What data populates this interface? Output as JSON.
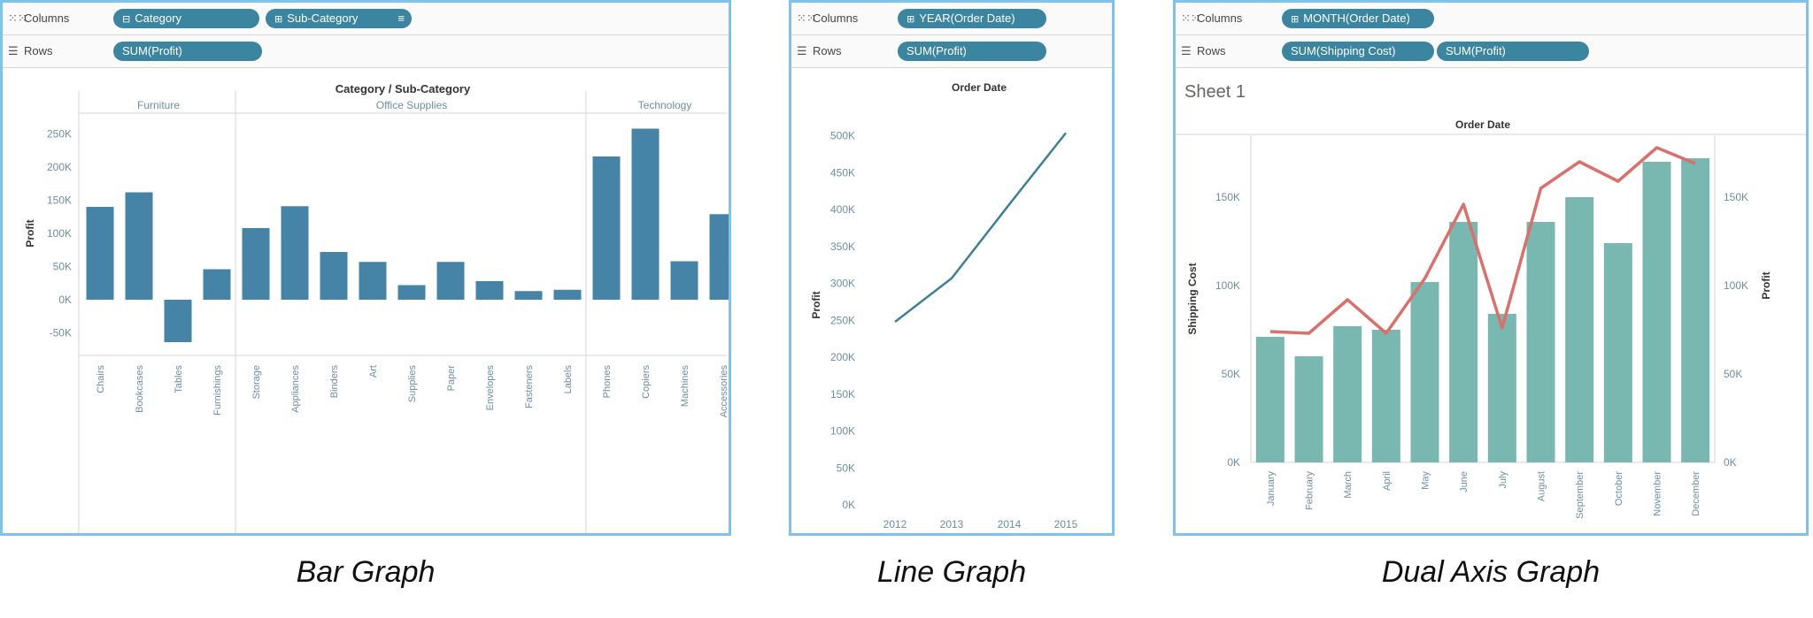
{
  "colors": {
    "frame": "#7cc4ee",
    "pill": "#3b85a1",
    "bar1": "#4584a6",
    "line2": "#3d7f9a",
    "bar3": "#78b8b1",
    "line3": "#d9706b",
    "axisText": "#6e8da0"
  },
  "panel1": {
    "shelf_columns_label": "Columns",
    "shelf_rows_label": "Rows",
    "columns_pills": [
      "Category",
      "Sub-Category"
    ],
    "rows_pills": [
      "SUM(Profit)"
    ],
    "caption": "Bar Graph"
  },
  "panel2": {
    "shelf_columns_label": "Columns",
    "shelf_rows_label": "Rows",
    "columns_pills": [
      "YEAR(Order Date)"
    ],
    "rows_pills": [
      "SUM(Profit)"
    ],
    "caption": "Line Graph"
  },
  "panel3": {
    "shelf_columns_label": "Columns",
    "shelf_rows_label": "Rows",
    "columns_pills": [
      "MONTH(Order Date)"
    ],
    "rows_pills": [
      "SUM(Shipping Cost)",
      "SUM(Profit)"
    ],
    "sheet_title": "Sheet 1",
    "caption": "Dual Axis Graph"
  },
  "chart_data": [
    {
      "type": "bar",
      "title": "Category / Sub-Category",
      "ylabel": "Profit",
      "ylim": [
        -80000,
        280000
      ],
      "yticks": [
        -50000,
        0,
        50000,
        100000,
        150000,
        200000,
        250000
      ],
      "ytick_labels": [
        "-50K",
        "0K",
        "50K",
        "100K",
        "150K",
        "200K",
        "250K"
      ],
      "groups": [
        {
          "name": "Furniture",
          "categories": [
            "Chairs",
            "Bookcases",
            "Tables",
            "Furnishings"
          ],
          "values": [
            140000,
            162000,
            -64000,
            46000
          ]
        },
        {
          "name": "Office Supplies",
          "categories": [
            "Storage",
            "Appliances",
            "Binders",
            "Art",
            "Supplies",
            "Paper",
            "Envelopes",
            "Fasteners",
            "Labels"
          ],
          "values": [
            108000,
            141000,
            72000,
            57000,
            22000,
            57000,
            28000,
            13000,
            15000
          ]
        },
        {
          "name": "Technology",
          "categories": [
            "Phones",
            "Copiers",
            "Machines",
            "Accessories"
          ],
          "values": [
            216000,
            258000,
            58000,
            129000
          ]
        }
      ]
    },
    {
      "type": "line",
      "title": "Order Date",
      "ylabel": "Profit",
      "x": [
        "2012",
        "2013",
        "2014",
        "2015"
      ],
      "values": [
        248000,
        307000,
        407000,
        504000
      ],
      "ylim": [
        0,
        520000
      ],
      "yticks": [
        0,
        50000,
        100000,
        150000,
        200000,
        250000,
        300000,
        350000,
        400000,
        450000,
        500000
      ],
      "ytick_labels": [
        "0K",
        "50K",
        "100K",
        "150K",
        "200K",
        "250K",
        "300K",
        "350K",
        "400K",
        "450K",
        "500K"
      ]
    },
    {
      "type": "bar+line",
      "title": "Order Date",
      "ylabel_left": "Shipping Cost",
      "ylabel_right": "Profit",
      "categories": [
        "January",
        "February",
        "March",
        "April",
        "May",
        "June",
        "July",
        "August",
        "September",
        "October",
        "November",
        "December"
      ],
      "series": [
        {
          "name": "SUM(Shipping Cost)",
          "axis": "left",
          "type": "bar",
          "values": [
            71000,
            60000,
            77000,
            75000,
            102000,
            136000,
            84000,
            136000,
            150000,
            124000,
            170000,
            172000
          ]
        },
        {
          "name": "SUM(Profit)",
          "axis": "right",
          "type": "line",
          "values": [
            74000,
            73000,
            92000,
            73000,
            104000,
            146000,
            76000,
            155000,
            170000,
            159000,
            178000,
            169000
          ]
        }
      ],
      "ylim_left": [
        0,
        185000
      ],
      "ylim_right": [
        0,
        185000
      ],
      "yticks": [
        0,
        50000,
        100000,
        150000
      ],
      "ytick_labels": [
        "0K",
        "50K",
        "100K",
        "150K"
      ]
    }
  ]
}
